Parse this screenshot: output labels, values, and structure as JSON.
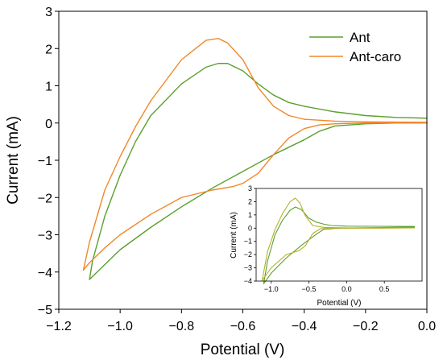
{
  "chart_data": [
    {
      "type": "line",
      "xlabel": "Potential (V)",
      "ylabel": "Current (mA)",
      "xlim": [
        -1.2,
        0.0
      ],
      "ylim": [
        -5,
        3
      ],
      "xticks": [
        "−1.2",
        "−1.0",
        "−0.8",
        "−0.6",
        "−0.4",
        "−0.2",
        "0.0"
      ],
      "yticks": [
        "−5",
        "−4",
        "−3",
        "−2",
        "−1",
        "0",
        "1",
        "2",
        "3"
      ],
      "legend_position": "top-right",
      "series": [
        {
          "name": "Ant",
          "color": "#5aa02c",
          "points": [
            [
              0.0,
              0.13
            ],
            [
              -0.1,
              0.15
            ],
            [
              -0.2,
              0.2
            ],
            [
              -0.3,
              0.3
            ],
            [
              -0.4,
              0.45
            ],
            [
              -0.45,
              0.55
            ],
            [
              -0.5,
              0.75
            ],
            [
              -0.55,
              1.05
            ],
            [
              -0.6,
              1.4
            ],
            [
              -0.65,
              1.6
            ],
            [
              -0.68,
              1.6
            ],
            [
              -0.72,
              1.5
            ],
            [
              -0.8,
              1.05
            ],
            [
              -0.9,
              0.2
            ],
            [
              -0.95,
              -0.5
            ],
            [
              -1.0,
              -1.4
            ],
            [
              -1.05,
              -2.5
            ],
            [
              -1.09,
              -3.7
            ],
            [
              -1.1,
              -4.2
            ],
            [
              -1.05,
              -3.8
            ],
            [
              -1.0,
              -3.4
            ],
            [
              -0.9,
              -2.8
            ],
            [
              -0.8,
              -2.25
            ],
            [
              -0.7,
              -1.75
            ],
            [
              -0.6,
              -1.3
            ],
            [
              -0.5,
              -0.85
            ],
            [
              -0.45,
              -0.65
            ],
            [
              -0.4,
              -0.45
            ],
            [
              -0.35,
              -0.22
            ],
            [
              -0.3,
              -0.08
            ],
            [
              -0.2,
              -0.02
            ],
            [
              -0.1,
              0.0
            ],
            [
              0.0,
              0.0
            ]
          ]
        },
        {
          "name": "Ant-caro",
          "color": "#f0882a",
          "points": [
            [
              0.0,
              0.02
            ],
            [
              -0.2,
              0.03
            ],
            [
              -0.3,
              0.05
            ],
            [
              -0.4,
              0.1
            ],
            [
              -0.45,
              0.2
            ],
            [
              -0.5,
              0.45
            ],
            [
              -0.55,
              0.95
            ],
            [
              -0.6,
              1.7
            ],
            [
              -0.65,
              2.15
            ],
            [
              -0.68,
              2.27
            ],
            [
              -0.72,
              2.22
            ],
            [
              -0.8,
              1.7
            ],
            [
              -0.9,
              0.6
            ],
            [
              -0.95,
              -0.1
            ],
            [
              -1.0,
              -0.9
            ],
            [
              -1.05,
              -1.8
            ],
            [
              -1.1,
              -3.2
            ],
            [
              -1.12,
              -3.95
            ],
            [
              -1.1,
              -3.75
            ],
            [
              -1.05,
              -3.35
            ],
            [
              -1.0,
              -3.0
            ],
            [
              -0.9,
              -2.45
            ],
            [
              -0.8,
              -2.0
            ],
            [
              -0.7,
              -1.8
            ],
            [
              -0.63,
              -1.7
            ],
            [
              -0.6,
              -1.62
            ],
            [
              -0.55,
              -1.35
            ],
            [
              -0.5,
              -0.85
            ],
            [
              -0.45,
              -0.4
            ],
            [
              -0.4,
              -0.15
            ],
            [
              -0.35,
              -0.05
            ],
            [
              -0.3,
              -0.02
            ],
            [
              -0.2,
              0.0
            ],
            [
              0.0,
              0.0
            ]
          ]
        }
      ]
    },
    {
      "type": "line",
      "xlabel": "Potential (V)",
      "ylabel": "Current (mA)",
      "xlim": [
        -1.2,
        1.0
      ],
      "ylim": [
        -4,
        3
      ],
      "xticks": [
        "−1.0",
        "−0.5",
        "0.0",
        "0.5"
      ],
      "yticks": [
        "−4",
        "−3",
        "−2",
        "−1",
        "0",
        "1",
        "2",
        "3"
      ],
      "series": [
        {
          "color": "#5aa02c",
          "points": [
            [
              0.9,
              0.13
            ],
            [
              0.5,
              0.14
            ],
            [
              0.0,
              0.15
            ],
            [
              -0.2,
              0.2
            ],
            [
              -0.3,
              0.3
            ],
            [
              -0.4,
              0.45
            ],
            [
              -0.5,
              0.75
            ],
            [
              -0.6,
              1.4
            ],
            [
              -0.68,
              1.6
            ],
            [
              -0.75,
              1.35
            ],
            [
              -0.85,
              0.6
            ],
            [
              -0.95,
              -0.5
            ],
            [
              -1.05,
              -2.5
            ],
            [
              -1.1,
              -4.2
            ],
            [
              -1.0,
              -3.4
            ],
            [
              -0.8,
              -2.25
            ],
            [
              -0.6,
              -1.3
            ],
            [
              -0.4,
              -0.45
            ],
            [
              -0.3,
              -0.08
            ],
            [
              -0.1,
              0.0
            ],
            [
              0.5,
              0.05
            ],
            [
              0.9,
              0.08
            ]
          ]
        },
        {
          "color": "#b8b02a",
          "points": [
            [
              0.9,
              0.02
            ],
            [
              0.0,
              0.02
            ],
            [
              -0.3,
              0.05
            ],
            [
              -0.45,
              0.2
            ],
            [
              -0.55,
              0.95
            ],
            [
              -0.62,
              1.9
            ],
            [
              -0.68,
              2.27
            ],
            [
              -0.75,
              2.0
            ],
            [
              -0.85,
              1.1
            ],
            [
              -0.95,
              -0.1
            ],
            [
              -1.05,
              -1.8
            ],
            [
              -1.12,
              -3.95
            ],
            [
              -1.0,
              -3.0
            ],
            [
              -0.8,
              -2.0
            ],
            [
              -0.63,
              -1.7
            ],
            [
              -0.55,
              -1.35
            ],
            [
              -0.45,
              -0.4
            ],
            [
              -0.35,
              -0.05
            ],
            [
              -0.2,
              0.0
            ],
            [
              0.5,
              0.0
            ],
            [
              0.9,
              0.02
            ]
          ]
        }
      ]
    }
  ]
}
